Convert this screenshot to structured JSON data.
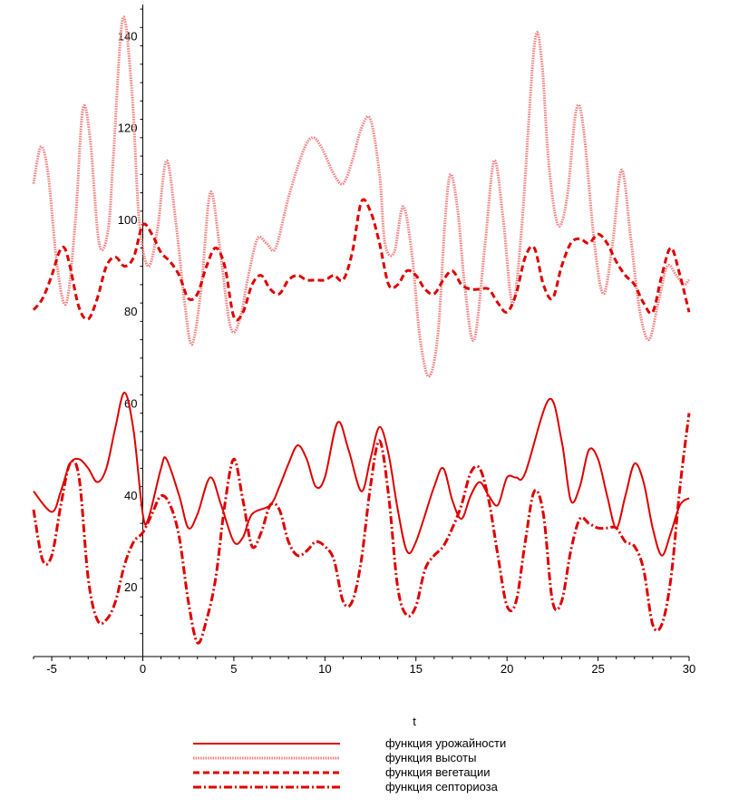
{
  "chart_data": {
    "type": "line",
    "title": "",
    "xlabel": "t",
    "ylabel": "",
    "xlim": [
      -6,
      30
    ],
    "ylim": [
      5,
      147
    ],
    "x_ticks": [
      -5,
      0,
      5,
      10,
      15,
      20,
      25,
      30
    ],
    "x_tick_labels": [
      "-5",
      "0",
      "5",
      "10",
      "15",
      "20",
      "25",
      "30"
    ],
    "y_ticks": [
      20,
      40,
      60,
      80,
      100,
      120,
      140
    ],
    "y_tick_labels": [
      "20",
      "40",
      "60",
      "80",
      "100",
      "120",
      "140"
    ],
    "grid": false,
    "legend_position": "bottom",
    "series": [
      {
        "name": "функция урожайности",
        "color": "#dd0000",
        "style": "solid",
        "points": [
          [
            -6,
            41
          ],
          [
            -5,
            36.5
          ],
          [
            -4.5,
            41
          ],
          [
            -4,
            47
          ],
          [
            -3.5,
            48
          ],
          [
            -3,
            46
          ],
          [
            -2.5,
            43
          ],
          [
            -2,
            46
          ],
          [
            -1.5,
            55
          ],
          [
            -1,
            62.5
          ],
          [
            -0.5,
            54
          ],
          [
            0,
            36
          ],
          [
            0.3,
            35
          ],
          [
            1,
            46
          ],
          [
            1.3,
            48
          ],
          [
            2,
            40
          ],
          [
            2.5,
            33
          ],
          [
            3,
            36
          ],
          [
            3.7,
            44
          ],
          [
            4.3,
            38
          ],
          [
            5,
            30
          ],
          [
            5.5,
            31
          ],
          [
            6,
            36
          ],
          [
            7,
            38
          ],
          [
            7.5,
            42
          ],
          [
            8,
            47
          ],
          [
            8.5,
            51
          ],
          [
            9,
            48
          ],
          [
            9.5,
            42
          ],
          [
            10,
            44
          ],
          [
            10.7,
            56
          ],
          [
            11.3,
            50
          ],
          [
            12,
            41
          ],
          [
            12.5,
            48
          ],
          [
            13,
            55
          ],
          [
            13.5,
            49
          ],
          [
            14,
            37
          ],
          [
            14.5,
            28
          ],
          [
            15,
            30
          ],
          [
            16,
            42
          ],
          [
            16.5,
            46
          ],
          [
            17,
            39
          ],
          [
            17.5,
            35
          ],
          [
            18,
            40
          ],
          [
            18.5,
            43
          ],
          [
            19,
            40
          ],
          [
            19.5,
            38
          ],
          [
            20,
            44
          ],
          [
            20.5,
            44
          ],
          [
            21,
            45
          ],
          [
            22.3,
            61
          ],
          [
            23,
            52
          ],
          [
            23.5,
            39
          ],
          [
            24,
            42
          ],
          [
            24.5,
            50
          ],
          [
            25,
            48
          ],
          [
            25.5,
            40
          ],
          [
            26,
            33
          ],
          [
            26.5,
            40
          ],
          [
            27,
            47
          ],
          [
            27.5,
            43
          ],
          [
            28,
            33
          ],
          [
            28.5,
            27
          ],
          [
            29,
            32
          ],
          [
            29.5,
            38
          ],
          [
            30,
            39.5
          ]
        ]
      },
      {
        "name": "функция высоты",
        "color": "#f08080",
        "style": "dotted",
        "points": [
          [
            -6,
            108
          ],
          [
            -5.6,
            116
          ],
          [
            -5.2,
            110
          ],
          [
            -4.7,
            90
          ],
          [
            -4.2,
            82
          ],
          [
            -3.7,
            100
          ],
          [
            -3.3,
            124
          ],
          [
            -2.9,
            118
          ],
          [
            -2.4,
            95
          ],
          [
            -1.9,
            98
          ],
          [
            -1.6,
            115
          ],
          [
            -1.1,
            144
          ],
          [
            -0.6,
            128
          ],
          [
            -0.2,
            100
          ],
          [
            0.3,
            90
          ],
          [
            0.8,
            98
          ],
          [
            1.3,
            113
          ],
          [
            1.8,
            100
          ],
          [
            2.3,
            82
          ],
          [
            2.7,
            73
          ],
          [
            3.2,
            85
          ],
          [
            3.7,
            106
          ],
          [
            4.2,
            95
          ],
          [
            4.8,
            77
          ],
          [
            5.3,
            78
          ],
          [
            5.8,
            88
          ],
          [
            6.3,
            96
          ],
          [
            6.8,
            95
          ],
          [
            7.3,
            94
          ],
          [
            8,
            105
          ],
          [
            8.8,
            115
          ],
          [
            9.3,
            118
          ],
          [
            9.8,
            116
          ],
          [
            10.5,
            110
          ],
          [
            11,
            108
          ],
          [
            11.5,
            113
          ],
          [
            12,
            120
          ],
          [
            12.5,
            122
          ],
          [
            13,
            110
          ],
          [
            13.3,
            95
          ],
          [
            13.8,
            93
          ],
          [
            14.3,
            103
          ],
          [
            14.8,
            92
          ],
          [
            15.2,
            75
          ],
          [
            15.7,
            66
          ],
          [
            16.2,
            75
          ],
          [
            16.6,
            100
          ],
          [
            16.9,
            110
          ],
          [
            17.3,
            102
          ],
          [
            17.7,
            85
          ],
          [
            18.2,
            74
          ],
          [
            18.8,
            95
          ],
          [
            19.3,
            113
          ],
          [
            19.8,
            100
          ],
          [
            20.3,
            82
          ],
          [
            20.8,
            98
          ],
          [
            21.5,
            138
          ],
          [
            21.9,
            135
          ],
          [
            22.3,
            112
          ],
          [
            22.8,
            99
          ],
          [
            23.3,
            105
          ],
          [
            23.8,
            124
          ],
          [
            24.2,
            120
          ],
          [
            24.8,
            95
          ],
          [
            25.3,
            84
          ],
          [
            25.8,
            95
          ],
          [
            26.3,
            111
          ],
          [
            26.8,
            96
          ],
          [
            27.3,
            80
          ],
          [
            27.8,
            74
          ],
          [
            28.3,
            82
          ],
          [
            28.8,
            90
          ],
          [
            29.3,
            88
          ],
          [
            29.7,
            86
          ],
          [
            30,
            87
          ]
        ]
      },
      {
        "name": "функция вегетации",
        "color": "#dd0000",
        "style": "dashed",
        "points": [
          [
            -6,
            80.5
          ],
          [
            -5.5,
            83
          ],
          [
            -5,
            88
          ],
          [
            -4.6,
            93
          ],
          [
            -4.3,
            94
          ],
          [
            -4,
            90
          ],
          [
            -3.5,
            81
          ],
          [
            -3,
            78.5
          ],
          [
            -2.5,
            83
          ],
          [
            -2,
            90
          ],
          [
            -1.5,
            92
          ],
          [
            -1,
            90
          ],
          [
            -0.5,
            92
          ],
          [
            0,
            99
          ],
          [
            0.5,
            97
          ],
          [
            1,
            93
          ],
          [
            1.5,
            91
          ],
          [
            2,
            88
          ],
          [
            2.5,
            83
          ],
          [
            3,
            84
          ],
          [
            3.5,
            90
          ],
          [
            4,
            94
          ],
          [
            4.5,
            90
          ],
          [
            5,
            79
          ],
          [
            5.5,
            80
          ],
          [
            6,
            86
          ],
          [
            6.5,
            88
          ],
          [
            7,
            85
          ],
          [
            7.5,
            84
          ],
          [
            8,
            87
          ],
          [
            8.5,
            88
          ],
          [
            9,
            87
          ],
          [
            9.5,
            87
          ],
          [
            10,
            87
          ],
          [
            10.5,
            88
          ],
          [
            11,
            87
          ],
          [
            11.5,
            93
          ],
          [
            12,
            104
          ],
          [
            12.5,
            102
          ],
          [
            13,
            95
          ],
          [
            13.5,
            86
          ],
          [
            14,
            86
          ],
          [
            14.5,
            89
          ],
          [
            15,
            88
          ],
          [
            15.5,
            85
          ],
          [
            16,
            84
          ],
          [
            16.5,
            87
          ],
          [
            17,
            89
          ],
          [
            17.5,
            86
          ],
          [
            18,
            85
          ],
          [
            18.5,
            85
          ],
          [
            19,
            85
          ],
          [
            19.5,
            82
          ],
          [
            20,
            80
          ],
          [
            20.5,
            84
          ],
          [
            21,
            92
          ],
          [
            21.5,
            94
          ],
          [
            22,
            86
          ],
          [
            22.5,
            83
          ],
          [
            23,
            90
          ],
          [
            23.5,
            95
          ],
          [
            24,
            96
          ],
          [
            24.5,
            95
          ],
          [
            25,
            97
          ],
          [
            25.5,
            95
          ],
          [
            26,
            91
          ],
          [
            26.5,
            88
          ],
          [
            27,
            86
          ],
          [
            27.5,
            82
          ],
          [
            28,
            80
          ],
          [
            28.5,
            88
          ],
          [
            29,
            94
          ],
          [
            29.5,
            88
          ],
          [
            30,
            80
          ]
        ]
      },
      {
        "name": "функция септориоза",
        "color": "#dd0000",
        "style": "dashdot",
        "points": [
          [
            -6,
            37
          ],
          [
            -5.5,
            26
          ],
          [
            -5,
            27
          ],
          [
            -4.5,
            38
          ],
          [
            -4,
            47
          ],
          [
            -3.5,
            44
          ],
          [
            -3,
            22
          ],
          [
            -2.5,
            13
          ],
          [
            -2,
            13
          ],
          [
            -1.5,
            17
          ],
          [
            -1,
            25
          ],
          [
            -0.5,
            30
          ],
          [
            0,
            32
          ],
          [
            0.5,
            36
          ],
          [
            1,
            40
          ],
          [
            1.5,
            38
          ],
          [
            2,
            31
          ],
          [
            2.5,
            17
          ],
          [
            3,
            8
          ],
          [
            3.5,
            13
          ],
          [
            4,
            22
          ],
          [
            4.5,
            38
          ],
          [
            5,
            48
          ],
          [
            5.5,
            39
          ],
          [
            6,
            29
          ],
          [
            6.5,
            32
          ],
          [
            7,
            38
          ],
          [
            7.5,
            37
          ],
          [
            8,
            30
          ],
          [
            8.5,
            27
          ],
          [
            9,
            28
          ],
          [
            9.5,
            30
          ],
          [
            10,
            29
          ],
          [
            10.5,
            26
          ],
          [
            11,
            17
          ],
          [
            11.5,
            17
          ],
          [
            12,
            26
          ],
          [
            12.5,
            42
          ],
          [
            13,
            52
          ],
          [
            13.5,
            40
          ],
          [
            14,
            20
          ],
          [
            14.5,
            14
          ],
          [
            15,
            16
          ],
          [
            15.5,
            24
          ],
          [
            16,
            27
          ],
          [
            16.5,
            29
          ],
          [
            17,
            33
          ],
          [
            17.5,
            38
          ],
          [
            18,
            45
          ],
          [
            18.5,
            46
          ],
          [
            19,
            39
          ],
          [
            19.5,
            27
          ],
          [
            20,
            16
          ],
          [
            20.5,
            17
          ],
          [
            21,
            30
          ],
          [
            21.5,
            41
          ],
          [
            22,
            36
          ],
          [
            22.5,
            17
          ],
          [
            23,
            17
          ],
          [
            23.5,
            28
          ],
          [
            24,
            35
          ],
          [
            24.5,
            34
          ],
          [
            25,
            33
          ],
          [
            25.5,
            33
          ],
          [
            26,
            33
          ],
          [
            26.5,
            30
          ],
          [
            27,
            29
          ],
          [
            27.5,
            24
          ],
          [
            28,
            12
          ],
          [
            28.5,
            12
          ],
          [
            29,
            22
          ],
          [
            29.5,
            42
          ],
          [
            30,
            58
          ]
        ]
      }
    ]
  }
}
